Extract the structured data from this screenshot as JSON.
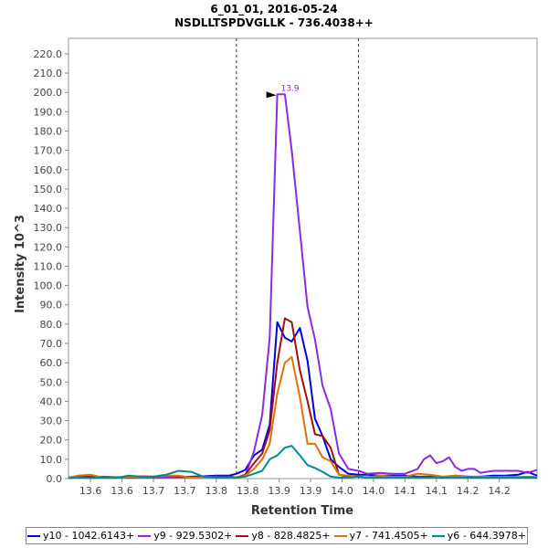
{
  "chart_data": {
    "type": "line",
    "title": "6_01_01, 2016-05-24",
    "subtitle": "NSDLLTSPDVGLLK - 736.4038++",
    "xlabel": "Retention Time",
    "ylabel": "Intensity 10^3",
    "xlim": [
      13.545,
      14.29
    ],
    "ylim": [
      0,
      228
    ],
    "x_ticks": [
      13.58,
      13.63,
      13.68,
      13.73,
      13.78,
      13.83,
      13.88,
      13.93,
      13.98,
      14.03,
      14.08,
      14.13,
      14.18,
      14.23
    ],
    "x_tick_labels": [
      "13.6",
      "13.6",
      "13.7",
      "13.7",
      "13.8",
      "13.8",
      "13.9",
      "13.9",
      "14.0",
      "14.0",
      "14.1",
      "14.1",
      "14.2",
      "14.2"
    ],
    "y_ticks": [
      0,
      10,
      20,
      30,
      40,
      50,
      60,
      70,
      80,
      90,
      100,
      110,
      120,
      130,
      140,
      150,
      160,
      170,
      180,
      190,
      200,
      210,
      220
    ],
    "y_tick_labels": [
      "0.0",
      "10.0",
      "20.0",
      "30.0",
      "40.0",
      "50.0",
      "60.0",
      "70.0",
      "80.0",
      "90.0",
      "100.0",
      "110.0",
      "120.0",
      "130.0",
      "140.0",
      "150.0",
      "160.0",
      "170.0",
      "180.0",
      "190.0",
      "200.0",
      "210.0",
      "220.0"
    ],
    "grid": false,
    "legend_position": "bottom",
    "boundaries": [
      13.812,
      14.006
    ],
    "peak_annotation": {
      "label": "13.9",
      "x": 13.877,
      "y": 199,
      "color": "#8a2be2"
    },
    "series": [
      {
        "name": "y10 - 1042.6143+",
        "color": "#0000e0",
        "x": [
          13.545,
          13.56,
          13.58,
          13.6,
          13.62,
          13.64,
          13.66,
          13.68,
          13.7,
          13.72,
          13.74,
          13.76,
          13.78,
          13.8,
          13.812,
          13.826,
          13.84,
          13.853,
          13.865,
          13.877,
          13.889,
          13.9,
          13.913,
          13.925,
          13.937,
          13.949,
          13.962,
          13.975,
          13.99,
          14.006,
          14.02,
          14.04,
          14.06,
          14.08,
          14.1,
          14.12,
          14.14,
          14.16,
          14.18,
          14.2,
          14.22,
          14.24,
          14.26,
          14.275,
          14.29
        ],
        "y": [
          0.5,
          0.8,
          1.0,
          0.6,
          0.5,
          0.6,
          0.7,
          0.8,
          1.0,
          0.9,
          1.0,
          1.2,
          1.5,
          1.5,
          2.5,
          4.5,
          12,
          15,
          28,
          81,
          73,
          71,
          78,
          61,
          31,
          22,
          10,
          6,
          2.5,
          2,
          2,
          1.5,
          1.5,
          1.5,
          1.0,
          1.0,
          0.5,
          1.5,
          1.0,
          1.0,
          1.5,
          1.5,
          2.0,
          3.5,
          1.5
        ]
      },
      {
        "name": "y9 - 929.5302+",
        "color": "#8a2be2",
        "x": [
          13.545,
          13.56,
          13.58,
          13.6,
          13.62,
          13.64,
          13.66,
          13.68,
          13.7,
          13.72,
          13.74,
          13.76,
          13.78,
          13.8,
          13.812,
          13.826,
          13.84,
          13.853,
          13.865,
          13.877,
          13.889,
          13.9,
          13.913,
          13.925,
          13.937,
          13.949,
          13.962,
          13.975,
          13.99,
          14.006,
          14.02,
          14.04,
          14.06,
          14.08,
          14.1,
          14.11,
          14.12,
          14.13,
          14.14,
          14.15,
          14.16,
          14.17,
          14.18,
          14.19,
          14.2,
          14.22,
          14.24,
          14.26,
          14.275,
          14.29
        ],
        "y": [
          0.3,
          0.5,
          0.8,
          1.0,
          0.7,
          0.6,
          0.6,
          0.5,
          0.6,
          0.7,
          0.7,
          0.8,
          1.0,
          1.0,
          0.5,
          1.5,
          14,
          33,
          73,
          199,
          199,
          170,
          128,
          89,
          72,
          48,
          36,
          13,
          5,
          4,
          2.5,
          3,
          2.5,
          2.5,
          5,
          10,
          12,
          8,
          9,
          11,
          6,
          4,
          5,
          5,
          3,
          4,
          4,
          4,
          3,
          4.5
        ]
      },
      {
        "name": "y8 - 828.4825+",
        "color": "#a01010",
        "x": [
          13.545,
          13.56,
          13.58,
          13.6,
          13.62,
          13.64,
          13.66,
          13.68,
          13.7,
          13.72,
          13.74,
          13.76,
          13.78,
          13.8,
          13.812,
          13.826,
          13.84,
          13.853,
          13.865,
          13.877,
          13.889,
          13.9,
          13.913,
          13.925,
          13.937,
          13.949,
          13.962,
          13.975,
          13.99,
          14.006,
          14.02,
          14.04,
          14.06,
          14.08,
          14.1,
          14.12,
          14.14,
          14.16,
          14.18,
          14.2,
          14.22,
          14.24,
          14.26,
          14.275,
          14.29
        ],
        "y": [
          0.5,
          0.8,
          1.0,
          0.5,
          0.7,
          0.8,
          1.2,
          1.0,
          1.5,
          1.0,
          0.8,
          0.7,
          1.0,
          1.0,
          0.5,
          2.0,
          8,
          13,
          25,
          60,
          83,
          81,
          56,
          40,
          23,
          22,
          16,
          2,
          1,
          1,
          0.5,
          1.5,
          1.0,
          1.0,
          0.8,
          1.0,
          0.5,
          1.0,
          0.5,
          0.8,
          0.5,
          1.0,
          0.5,
          0.8,
          0.5
        ]
      },
      {
        "name": "y7 - 741.4505+",
        "color": "#e07010",
        "x": [
          13.545,
          13.56,
          13.58,
          13.6,
          13.62,
          13.64,
          13.66,
          13.68,
          13.7,
          13.72,
          13.74,
          13.76,
          13.78,
          13.8,
          13.812,
          13.826,
          13.84,
          13.853,
          13.865,
          13.877,
          13.889,
          13.9,
          13.913,
          13.925,
          13.937,
          13.949,
          13.962,
          13.975,
          13.99,
          14.006,
          14.02,
          14.04,
          14.06,
          14.08,
          14.1,
          14.12,
          14.14,
          14.16,
          14.18,
          14.2,
          14.22,
          14.24,
          14.26,
          14.275,
          14.29
        ],
        "y": [
          0.5,
          1.5,
          2.0,
          0.5,
          0.5,
          0.8,
          1.0,
          1.0,
          1.5,
          1.5,
          0.5,
          0.5,
          0.5,
          0.5,
          0.3,
          1.5,
          5,
          10,
          18,
          44,
          60,
          63,
          42,
          18,
          18,
          11,
          9,
          2,
          1.5,
          1,
          0.5,
          1.5,
          1.0,
          1.0,
          2.5,
          2.0,
          1.0,
          1.5,
          0.8,
          1.0,
          0.8,
          1.0,
          0.8,
          1.0,
          0.8
        ]
      },
      {
        "name": "y6 - 644.3978+",
        "color": "#008b8b",
        "x": [
          13.545,
          13.56,
          13.58,
          13.6,
          13.62,
          13.64,
          13.66,
          13.68,
          13.7,
          13.72,
          13.74,
          13.76,
          13.78,
          13.8,
          13.812,
          13.826,
          13.84,
          13.853,
          13.865,
          13.877,
          13.889,
          13.9,
          13.913,
          13.925,
          13.937,
          13.949,
          13.962,
          13.975,
          13.99,
          14.006,
          14.02,
          14.04,
          14.06,
          14.08,
          14.1,
          14.12,
          14.14,
          14.16,
          14.18,
          14.2,
          14.22,
          14.24,
          14.26,
          14.275,
          14.29
        ],
        "y": [
          0.3,
          0.5,
          0.3,
          0.5,
          0.3,
          1.5,
          1.0,
          1.0,
          2.0,
          4.0,
          3.5,
          1.0,
          0.5,
          0.5,
          0.5,
          1.0,
          2.5,
          4,
          10,
          12,
          16,
          17,
          12,
          7,
          5.5,
          3.5,
          1,
          0.5,
          0.5,
          1,
          0.5,
          0.5,
          0.5,
          0.5,
          0.5,
          0.5,
          0.5,
          0.5,
          0.5,
          0.5,
          0.5,
          0.5,
          0.5,
          0.5,
          0.5
        ]
      }
    ]
  }
}
